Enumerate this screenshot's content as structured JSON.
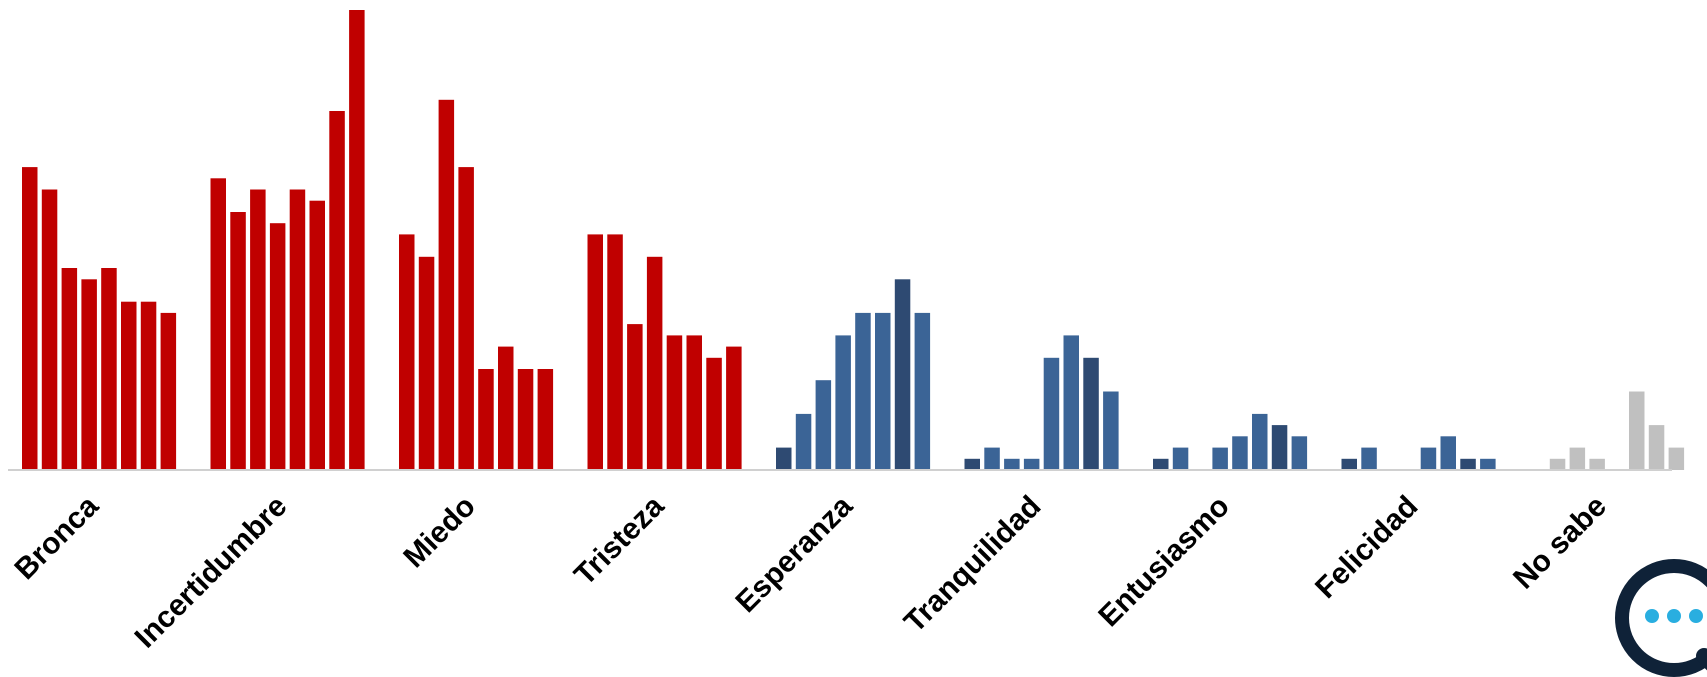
{
  "chart_data": {
    "type": "bar",
    "title": "",
    "xlabel": "",
    "ylabel": "",
    "grid": false,
    "legend": "none",
    "ylim": [
      0,
      41
    ],
    "categories": [
      "Bronca",
      "Incertidumbre",
      "Miedo",
      "Tristeza",
      "Esperanza",
      "Tranquilidad",
      "Entusiasmo",
      "Felicidad",
      "No sabe"
    ],
    "groups": [
      {
        "category": "Bronca",
        "values": [
          27,
          25,
          18,
          17,
          18,
          15,
          15,
          14
        ],
        "colors": [
          "#c00000",
          "#c00000",
          "#c00000",
          "#c00000",
          "#c00000",
          "#c00000",
          "#c00000",
          "#c00000"
        ]
      },
      {
        "category": "Incertidumbre",
        "values": [
          26,
          23,
          25,
          22,
          25,
          24,
          32,
          41
        ],
        "colors": [
          "#c00000",
          "#c00000",
          "#c00000",
          "#c00000",
          "#c00000",
          "#c00000",
          "#c00000",
          "#c00000"
        ]
      },
      {
        "category": "Miedo",
        "values": [
          21,
          19,
          33,
          27,
          9,
          11,
          9,
          9
        ],
        "colors": [
          "#c00000",
          "#c00000",
          "#c00000",
          "#c00000",
          "#c00000",
          "#c00000",
          "#c00000",
          "#c00000"
        ]
      },
      {
        "category": "Tristeza",
        "values": [
          21,
          21,
          13,
          19,
          12,
          12,
          10,
          11
        ],
        "colors": [
          "#c00000",
          "#c00000",
          "#c00000",
          "#c00000",
          "#c00000",
          "#c00000",
          "#c00000",
          "#c00000"
        ]
      },
      {
        "category": "Esperanza",
        "values": [
          2,
          5,
          8,
          12,
          14,
          14,
          17,
          14
        ],
        "colors": [
          "#2e4a72",
          "#3b6496",
          "#3b6496",
          "#3b6496",
          "#3b6496",
          "#3b6496",
          "#2e4a72",
          "#3b6496"
        ]
      },
      {
        "category": "Tranquilidad",
        "values": [
          1,
          2,
          1,
          1,
          10,
          12,
          10,
          7
        ],
        "colors": [
          "#2e4a72",
          "#3b6496",
          "#3b6496",
          "#3b6496",
          "#3b6496",
          "#3b6496",
          "#2e4a72",
          "#3b6496"
        ]
      },
      {
        "category": "Entusiasmo",
        "values": [
          1,
          2,
          0,
          2,
          3,
          5,
          4,
          3
        ],
        "colors": [
          "#2e4a72",
          "#3b6496",
          "#3b6496",
          "#3b6496",
          "#3b6496",
          "#3b6496",
          "#2e4a72",
          "#3b6496"
        ]
      },
      {
        "category": "Felicidad",
        "values": [
          1,
          2,
          0,
          0,
          2,
          3,
          1,
          1
        ],
        "colors": [
          "#2e4a72",
          "#3b6496",
          "#3b6496",
          "#3b6496",
          "#3b6496",
          "#3b6496",
          "#2e4a72",
          "#3b6496"
        ]
      },
      {
        "category": "No sabe",
        "values": [
          0,
          1,
          2,
          1,
          0,
          7,
          4,
          2
        ],
        "colors": [
          "#c0c0c0",
          "#c0c0c0",
          "#c0c0c0",
          "#c0c0c0",
          "#c0c0c0",
          "#c0c0c0",
          "#c0c0c0",
          "#c0c0c0"
        ]
      }
    ],
    "colors": {
      "negative": "#c00000",
      "positive": "#3b6496",
      "positive_dark": "#2e4a72",
      "unknown": "#c0c0c0",
      "axis": "#d0d0d0"
    }
  },
  "logo": {
    "icon": "chat-bubble-logo-icon",
    "ring_color": "#0f2238",
    "dot_color": "#29aee0"
  }
}
